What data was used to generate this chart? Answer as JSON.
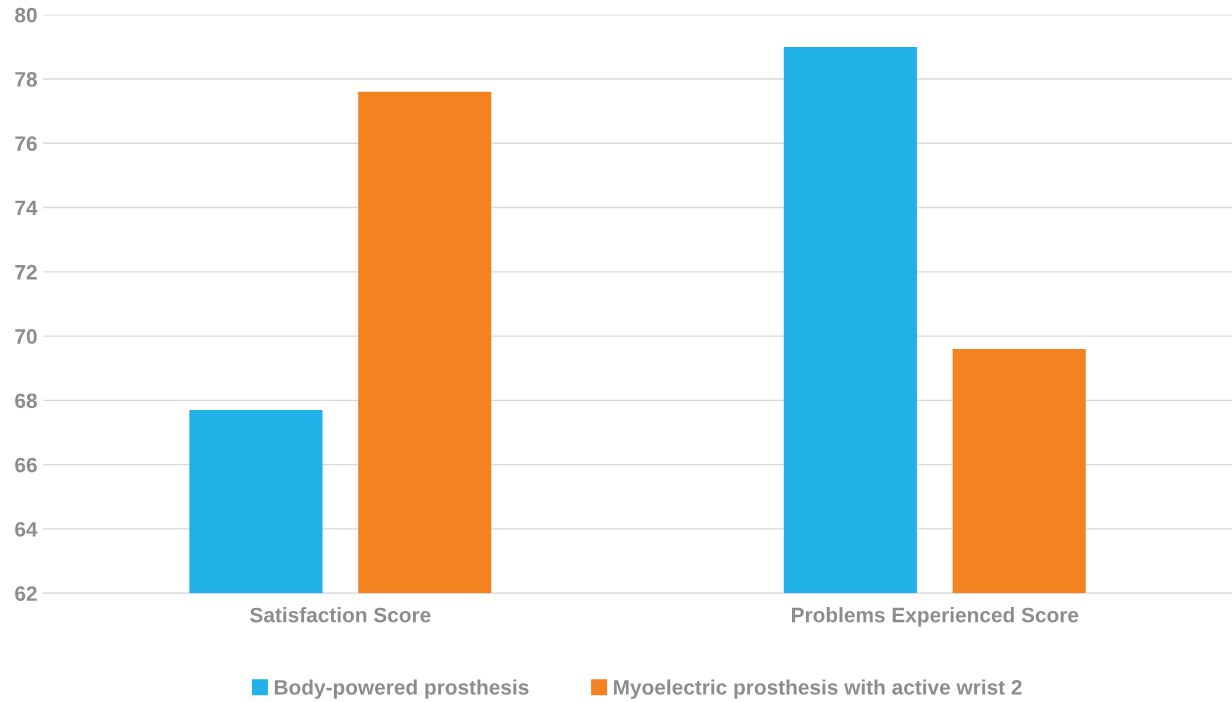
{
  "chart_data": {
    "type": "bar",
    "categories": [
      "Satisfaction Score",
      "Problems Experienced Score"
    ],
    "series": [
      {
        "name": "Body-powered prosthesis",
        "color": "#20b2e6",
        "values": [
          67.7,
          79.0
        ]
      },
      {
        "name": "Myoelectric prosthesis with active wrist 2",
        "color": "#f38321",
        "values": [
          77.6,
          69.6
        ]
      }
    ],
    "ylim": [
      62,
      80
    ],
    "yticks": [
      62,
      64,
      66,
      68,
      70,
      72,
      74,
      76,
      78,
      80
    ],
    "grid": "y",
    "legend": "bottom"
  }
}
